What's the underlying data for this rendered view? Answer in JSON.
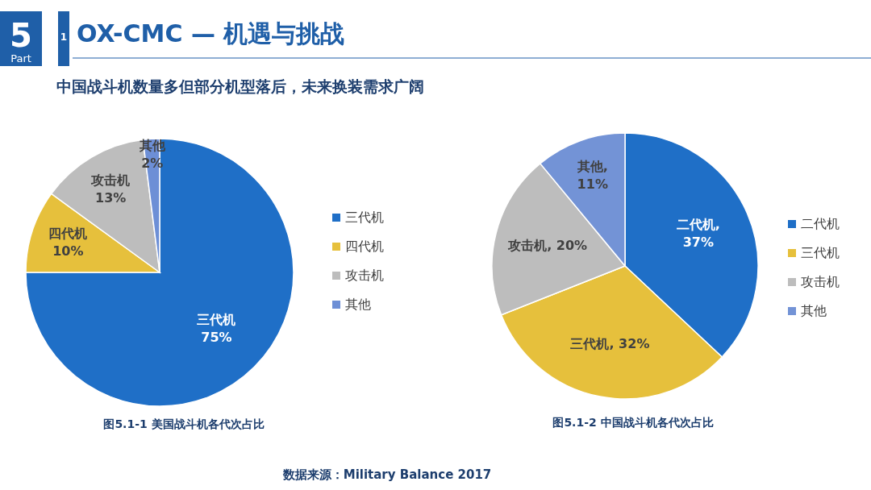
{
  "chart_data": [
    {
      "type": "pie",
      "title": "OX-CMC — 机遇与挑战",
      "subtitle": "中国战斗机数量多但部分机型落后，未来换装需求广阔",
      "categories": [
        "三代机",
        "四代机",
        "攻击机",
        "其他"
      ],
      "values": [
        75,
        10,
        13,
        2
      ],
      "colors": [
        "#1f6fc7",
        "#e6c03c",
        "#bdbdbd",
        "#6d8fd6"
      ],
      "value_labels": [
        "三代机\n75%",
        "四代机\n10%",
        "攻击机\n13%",
        "其他\n2%"
      ],
      "legend": "right",
      "annotations": [
        "5",
        "Part",
        "1",
        "图5.1-1 美国战斗机各代次占比"
      ]
    },
    {
      "type": "pie",
      "categories": [
        "二代机",
        "三代机",
        "攻击机",
        "其他"
      ],
      "values": [
        37,
        32,
        20,
        11
      ],
      "colors": [
        "#1f6fc7",
        "#e6c03c",
        "#bdbdbd",
        "#7393d6"
      ],
      "value_labels": [
        "二代机,\n37%",
        "三代机, 32%",
        "攻击机, 20%",
        "其他,\n11%"
      ],
      "legend": "right",
      "annotations": [
        "图5.1-2 中国战斗机各代次占比",
        "数据来源：Military Balance 2017"
      ]
    }
  ]
}
